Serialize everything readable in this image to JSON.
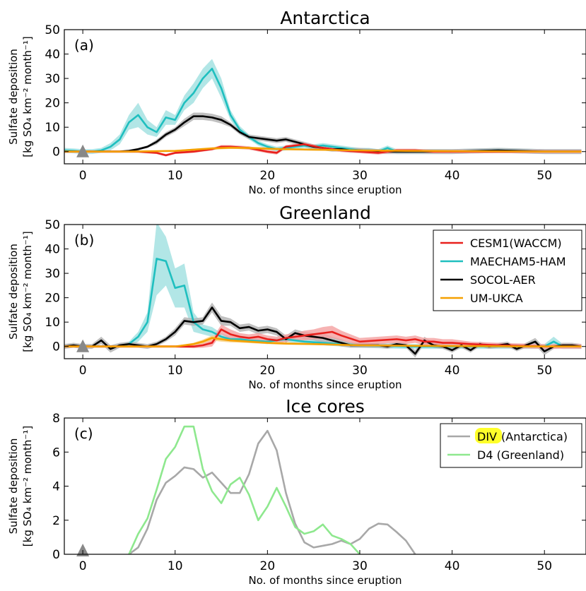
{
  "chart_data": [
    {
      "type": "line",
      "panel_label": "(a)",
      "title": "Antarctica",
      "xlabel": "No. of months since eruption",
      "ylabel_line1": "Sulfate deposition",
      "ylabel_line2": "[kg SO₄ km⁻² month⁻¹]",
      "xlim": [
        -2,
        54.5
      ],
      "ylim": [
        -5,
        50
      ],
      "xticks": [
        0,
        10,
        20,
        30,
        40,
        50
      ],
      "yticks": [
        0,
        10,
        20,
        30,
        40,
        50
      ],
      "eruption_marker_x": 0,
      "series": [
        {
          "name": "MAECHAM5-HAM",
          "color": "#1fbfbf",
          "band_color": "#9fe0e0",
          "x": [
            -2,
            -1,
            0,
            1,
            2,
            3,
            4,
            5,
            6,
            7,
            8,
            9,
            10,
            11,
            12,
            13,
            14,
            15,
            16,
            17,
            18,
            19,
            20,
            21,
            22,
            23,
            24,
            25,
            26,
            27,
            28,
            29,
            30,
            31,
            32,
            33,
            34,
            35,
            36,
            40,
            45,
            50,
            54
          ],
          "y": [
            0.5,
            0.3,
            0,
            0,
            0.5,
            2,
            5,
            12,
            15,
            10,
            8,
            14,
            13,
            20,
            24,
            30,
            34,
            26,
            15,
            9,
            6,
            3.5,
            2,
            1,
            1.5,
            2,
            2.5,
            2,
            2.5,
            2,
            1.5,
            1,
            0.5,
            0.5,
            0,
            1.5,
            0,
            0,
            0,
            0,
            0.5,
            0,
            0
          ],
          "band": [
            1,
            1,
            1,
            1,
            1,
            1.5,
            2,
            3,
            5,
            3,
            2,
            3,
            2,
            3,
            4,
            4,
            4,
            4,
            2,
            1.5,
            1,
            1,
            1,
            1,
            1,
            1,
            1,
            1,
            1,
            1,
            1,
            1,
            1,
            1,
            1,
            1,
            1,
            1,
            1,
            1,
            1,
            1,
            1
          ]
        },
        {
          "name": "SOCOL-AER",
          "color": "#000000",
          "band_color": "#b0b0b0",
          "x": [
            -2,
            -1,
            0,
            1,
            2,
            3,
            4,
            5,
            6,
            7,
            8,
            9,
            10,
            11,
            12,
            13,
            14,
            15,
            16,
            17,
            18,
            19,
            20,
            21,
            22,
            23,
            24,
            25,
            26,
            27,
            28,
            29,
            30,
            31,
            32,
            34,
            36,
            40,
            45,
            50,
            54
          ],
          "y": [
            0,
            0,
            0,
            0,
            0,
            0,
            0,
            0.3,
            1,
            2,
            4,
            7,
            9,
            12,
            14.5,
            14.5,
            14,
            13,
            11,
            8,
            6,
            5.5,
            5,
            4.5,
            5,
            4,
            3,
            2,
            1.5,
            1,
            1,
            0.5,
            0.5,
            0.3,
            0,
            0,
            0,
            0,
            0.5,
            0,
            0
          ],
          "band": [
            0.5,
            0.5,
            0.5,
            0.5,
            0.5,
            0.5,
            0.5,
            0.5,
            0.5,
            0.5,
            1,
            1,
            1,
            1.5,
            1.5,
            1.5,
            1.5,
            1.5,
            1,
            1,
            1,
            1,
            1,
            1,
            1,
            1,
            1,
            1,
            1,
            1,
            1,
            1,
            1,
            1,
            1,
            1,
            1,
            1,
            1,
            1,
            1
          ]
        },
        {
          "name": "CESM1(WACCM)",
          "color": "#e8201c",
          "band_color": "#f4a0a0",
          "x": [
            -2,
            0,
            2,
            4,
            6,
            8,
            9,
            10,
            12,
            14,
            15,
            16,
            18,
            20,
            21,
            22,
            24,
            26,
            28,
            30,
            32,
            34,
            36,
            38,
            40,
            45,
            50,
            54
          ],
          "y": [
            0,
            0,
            0,
            0,
            0,
            -0.5,
            -1.5,
            -0.5,
            0,
            1,
            2,
            2,
            1.5,
            0,
            -0.5,
            2,
            3,
            1.5,
            0.5,
            0,
            -0.5,
            0.5,
            0.5,
            0,
            0,
            0,
            0,
            0
          ],
          "band": [
            0.5,
            0.5,
            0.5,
            0.5,
            0.5,
            0.5,
            0.5,
            0.5,
            0.5,
            0.5,
            0.7,
            0.7,
            0.7,
            0.7,
            0.7,
            0.7,
            0.7,
            0.7,
            0.7,
            0.7,
            0.7,
            0.7,
            0.7,
            0.7,
            0.7,
            0.7,
            0.7,
            0.7
          ]
        },
        {
          "name": "UM-UKCA",
          "color": "#f5a000",
          "band_color": "#fad080",
          "x": [
            -2,
            0,
            5,
            10,
            12,
            14,
            16,
            18,
            20,
            22,
            25,
            30,
            35,
            40,
            45,
            50,
            54
          ],
          "y": [
            0,
            0,
            0,
            0.3,
            0.8,
            1.3,
            1.6,
            1.5,
            1.2,
            1,
            0.8,
            0.5,
            0.3,
            0.2,
            0.1,
            0,
            0
          ],
          "band": [
            0.3,
            0.3,
            0.3,
            0.3,
            0.4,
            0.5,
            0.5,
            0.5,
            0.5,
            0.4,
            0.4,
            0.3,
            0.3,
            0.3,
            0.3,
            0.3,
            0.3
          ]
        }
      ]
    },
    {
      "type": "line",
      "panel_label": "(b)",
      "title": "Greenland",
      "xlabel": "No. of months since eruption",
      "ylabel_line1": "Sulfate deposition",
      "ylabel_line2": "[kg SO₄ km⁻² month⁻¹]",
      "xlim": [
        -2,
        54.5
      ],
      "ylim": [
        -5,
        50
      ],
      "xticks": [
        0,
        10,
        20,
        30,
        40,
        50
      ],
      "yticks": [
        0,
        10,
        20,
        30,
        40,
        50
      ],
      "eruption_marker_x": 0,
      "legend": {
        "position": "upper-right",
        "entries": [
          {
            "label": "CESM1(WACCM)",
            "color": "#e8201c"
          },
          {
            "label": "MAECHAM5-HAM",
            "color": "#1fbfbf"
          },
          {
            "label": "SOCOL-AER",
            "color": "#000000"
          },
          {
            "label": "UM-UKCA",
            "color": "#f5a000"
          }
        ]
      },
      "series": [
        {
          "name": "MAECHAM5-HAM",
          "color": "#1fbfbf",
          "band_color": "#9fe0e0",
          "x": [
            -2,
            0,
            2,
            4,
            5,
            6,
            7,
            8,
            9,
            10,
            11,
            12,
            13,
            14,
            15,
            16,
            17,
            18,
            20,
            22,
            24,
            26,
            28,
            30,
            35,
            40,
            45,
            50,
            51,
            52,
            54
          ],
          "y": [
            0,
            0,
            0,
            0,
            1,
            4,
            10,
            36,
            35,
            24,
            25,
            10,
            7,
            6,
            4,
            3,
            3,
            2.5,
            2,
            3,
            2,
            1.5,
            1,
            0.5,
            0,
            0,
            0,
            0,
            2,
            0,
            0
          ],
          "band": [
            0.5,
            0.5,
            0.5,
            0.5,
            1,
            2,
            4,
            15,
            10,
            8,
            9,
            4,
            2,
            2,
            1.5,
            1,
            1,
            1,
            1,
            1,
            1,
            1,
            1,
            1,
            1,
            1,
            1,
            1,
            2,
            1,
            1
          ]
        },
        {
          "name": "SOCOL-AER",
          "color": "#000000",
          "band_color": "#b0b0b0",
          "x": [
            -2,
            -1,
            0,
            1,
            2,
            3,
            4,
            5,
            6,
            7,
            8,
            9,
            10,
            11,
            12,
            13,
            14,
            15,
            16,
            17,
            18,
            19,
            20,
            21,
            22,
            23,
            24,
            25,
            26,
            27,
            28,
            29,
            30,
            31,
            32,
            33,
            34,
            35,
            36,
            37,
            38,
            39,
            40,
            41,
            42,
            43,
            44,
            45,
            46,
            47,
            48,
            49,
            50,
            51,
            52,
            53,
            54
          ],
          "y": [
            0,
            0.5,
            0,
            0,
            2.5,
            -1,
            0.5,
            1,
            0.5,
            0,
            1,
            3,
            6,
            10.5,
            10,
            10.5,
            16,
            10.5,
            10,
            7.5,
            8,
            6.5,
            7,
            6,
            3,
            5.5,
            4.5,
            4,
            3.5,
            2.5,
            1.5,
            0.5,
            0.5,
            0.5,
            0.5,
            0,
            1,
            0.5,
            -3,
            2.5,
            0.5,
            0,
            -1.5,
            0.5,
            -1.5,
            1,
            0,
            0.5,
            1,
            -1,
            0.5,
            2,
            -2,
            0,
            0.5,
            0.5,
            0
          ],
          "band": [
            1,
            1,
            1,
            1,
            1.5,
            1.5,
            1,
            1,
            1,
            1,
            1,
            1,
            1.5,
            1.5,
            1.5,
            1.5,
            2,
            2,
            1.5,
            1.5,
            1.5,
            1.5,
            1.5,
            1.5,
            1.5,
            1.5,
            1.5,
            1.5,
            2,
            1.5,
            1.5,
            1,
            1,
            1,
            1,
            1,
            1,
            1,
            1.5,
            1.5,
            1,
            1,
            1,
            1,
            1,
            1,
            1,
            1,
            1,
            1,
            1,
            1.5,
            1.5,
            1,
            1,
            1,
            1
          ]
        },
        {
          "name": "CESM1(WACCM)",
          "color": "#e8201c",
          "band_color": "#f4a0a0",
          "x": [
            -2,
            0,
            5,
            10,
            12,
            13,
            14,
            15,
            16,
            17,
            18,
            19,
            20,
            21,
            22,
            23,
            24,
            25,
            26,
            27,
            28,
            30,
            32,
            34,
            35,
            36,
            37,
            38,
            39,
            40,
            42,
            45,
            50,
            54
          ],
          "y": [
            0,
            0,
            0,
            0,
            0,
            0.5,
            1.5,
            7,
            5,
            4,
            3.5,
            4,
            3,
            2.5,
            3.5,
            4,
            4.5,
            5,
            5.5,
            6,
            4.5,
            2,
            2.5,
            3,
            2.5,
            3,
            2,
            2,
            1.5,
            1.5,
            1,
            0.5,
            0,
            0
          ],
          "band": [
            0.5,
            0.5,
            0.5,
            0.5,
            0.7,
            1,
            1.5,
            2,
            2,
            1.5,
            1.5,
            1.5,
            1.5,
            1.5,
            1.5,
            1.5,
            2,
            2,
            2.5,
            2.5,
            2,
            1.5,
            1.5,
            1.5,
            1.5,
            1.5,
            1.5,
            1.5,
            1.5,
            1.5,
            1,
            1,
            1,
            1
          ]
        },
        {
          "name": "UM-UKCA",
          "color": "#f5a000",
          "band_color": "#fad080",
          "x": [
            -2,
            0,
            5,
            8,
            10,
            12,
            13,
            14,
            15,
            16,
            18,
            20,
            22,
            25,
            30,
            35,
            40,
            45,
            50,
            54
          ],
          "y": [
            0,
            0,
            0,
            0,
            0,
            1,
            2,
            3.5,
            3,
            2.5,
            2,
            1.5,
            1.2,
            1,
            0.5,
            0.3,
            0.2,
            0.1,
            0,
            0
          ],
          "band": [
            0.3,
            0.3,
            0.3,
            0.3,
            0.3,
            0.5,
            0.8,
            1,
            1,
            0.8,
            0.6,
            0.5,
            0.5,
            0.4,
            0.3,
            0.3,
            0.3,
            0.3,
            0.3,
            0.3
          ]
        }
      ]
    },
    {
      "type": "line",
      "panel_label": "(c)",
      "title": "Ice cores",
      "xlabel": "No. of months since eruption",
      "ylabel_line1": "Sulfate deposition",
      "ylabel_line2": "[kg SO₄ km⁻² month⁻¹]",
      "xlim": [
        -2,
        54.5
      ],
      "ylim": [
        0,
        8
      ],
      "xticks": [
        0,
        10,
        20,
        30,
        40,
        50
      ],
      "yticks": [
        0,
        2,
        4,
        6,
        8
      ],
      "eruption_marker_x": 0,
      "legend": {
        "position": "upper-right",
        "entries": [
          {
            "label_highlight": "DIV",
            "label": " (Antarctica)",
            "color": "#a8a8a8"
          },
          {
            "label": "D4 (Greenland)",
            "color": "#8ee88e"
          }
        ]
      },
      "series": [
        {
          "name": "DIV (Antarctica)",
          "color": "#a8a8a8",
          "x": [
            5,
            6,
            7,
            8,
            9,
            10,
            11,
            12,
            13,
            14,
            15,
            16,
            17,
            18,
            19,
            20,
            21,
            22,
            23,
            24,
            25,
            26,
            27,
            28,
            29,
            30,
            31,
            32,
            33,
            34,
            35,
            36
          ],
          "y": [
            0,
            0.4,
            1.5,
            3.2,
            4.2,
            4.6,
            5.1,
            5.0,
            4.5,
            4.8,
            4.2,
            3.6,
            3.6,
            4.7,
            6.5,
            7.25,
            6.1,
            3.6,
            1.8,
            0.7,
            0.4,
            0.5,
            0.6,
            0.8,
            0.6,
            0.9,
            1.5,
            1.8,
            1.75,
            1.3,
            0.8,
            0
          ]
        },
        {
          "name": "D4 (Greenland)",
          "color": "#8ee88e",
          "x": [
            5,
            6,
            7,
            8,
            9,
            10,
            11,
            12,
            13,
            14,
            15,
            16,
            17,
            18,
            19,
            20,
            21,
            22,
            23,
            24,
            25,
            26,
            27,
            28,
            29,
            30
          ],
          "y": [
            0,
            1.2,
            2.1,
            3.8,
            5.6,
            6.3,
            7.5,
            7.5,
            5.0,
            3.7,
            3.0,
            4.1,
            4.5,
            3.5,
            2.0,
            2.8,
            3.9,
            2.8,
            1.6,
            1.2,
            1.35,
            1.75,
            1.1,
            0.9,
            0.6,
            0
          ]
        }
      ]
    }
  ]
}
